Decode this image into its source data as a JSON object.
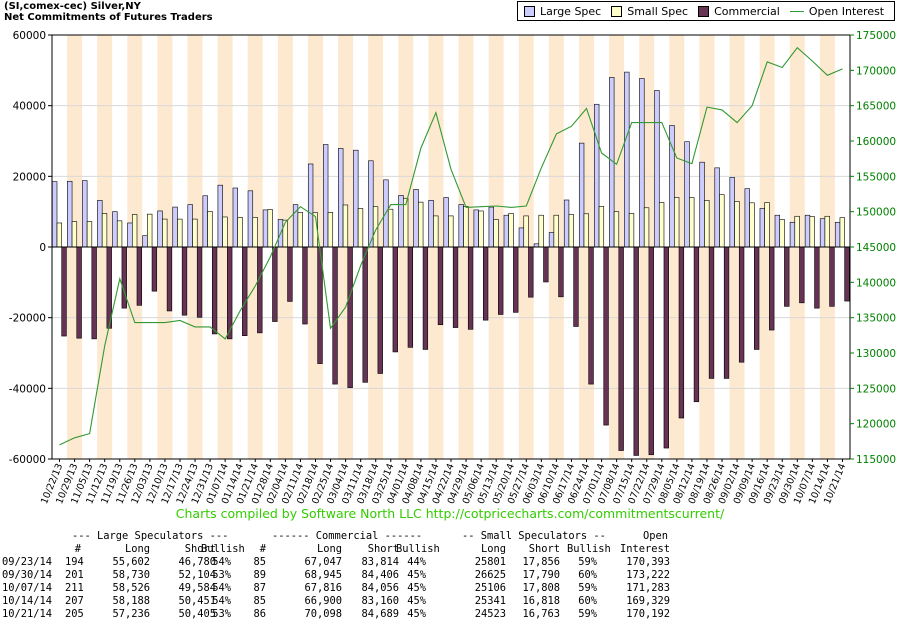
{
  "header": {
    "line1": "(SI,comex-cec) Silver,NY",
    "line2": "Net Commitments of Futures Traders"
  },
  "legend": [
    {
      "label": "Large Spec",
      "color": "#ccccff"
    },
    {
      "label": "Small Spec",
      "color": "#ffffcc"
    },
    {
      "label": "Commercial",
      "color": "#663355"
    },
    {
      "label": "Open Interest",
      "color": "#339933"
    }
  ],
  "credit": "Charts compiled by Software North LLC  http://cotpricecharts.com/commitmentscurrent/",
  "colors": {
    "large_spec": "#ccccff",
    "small_spec": "#ffffcc",
    "commercial": "#663355",
    "open_interest": "#339933",
    "band_odd": "#fde9d0",
    "band_even": "#ffffff",
    "axis_left": "#000000",
    "axis_right": "#008000",
    "credit": "#33cc00"
  },
  "chart_data": {
    "type": "bar",
    "xlabel": "",
    "ylabel": "",
    "left_axis": {
      "ylim": [
        -60000,
        60000
      ],
      "ticks": [
        "60000",
        "40000",
        "20000",
        "0",
        "-20000",
        "-40000",
        "-60000"
      ]
    },
    "right_axis": {
      "ylim": [
        115000,
        175000
      ],
      "ticks": [
        "175000",
        "170000",
        "165000",
        "160000",
        "155000",
        "150000",
        "145000",
        "140000",
        "135000",
        "130000",
        "125000",
        "120000",
        "115000"
      ]
    },
    "x_tick_labels": [
      "10/22/13",
      "10/29/13",
      "11/05/13",
      "11/12/13",
      "11/19/13",
      "11/26/13",
      "12/03/13",
      "12/10/13",
      "12/17/13",
      "12/24/13",
      "12/31/13",
      "01/07/14",
      "01/14/14",
      "01/21/14",
      "01/28/14",
      "02/04/14",
      "02/11/14",
      "02/18/14",
      "02/25/14",
      "03/04/14",
      "03/11/14",
      "03/18/14",
      "03/25/14",
      "04/01/14",
      "04/08/14",
      "04/15/14",
      "04/22/14",
      "04/29/14",
      "05/06/14",
      "05/13/14",
      "05/20/14",
      "05/27/14",
      "06/03/14",
      "06/10/14",
      "06/17/14",
      "06/24/14",
      "07/01/14",
      "07/08/14",
      "07/15/14",
      "07/22/14",
      "07/29/14",
      "08/05/14",
      "08/12/14",
      "08/19/14",
      "08/26/14",
      "09/02/14",
      "09/09/14",
      "09/16/14",
      "09/23/14",
      "09/30/14",
      "10/07/14",
      "10/14/14",
      "10/21/14"
    ],
    "series": [
      {
        "name": "Large Spec",
        "axis": "left",
        "values": [
          18500,
          18600,
          18800,
          13200,
          10000,
          6800,
          3200,
          10200,
          11300,
          12000,
          14500,
          17500,
          16700,
          15900,
          10500,
          7800,
          12000,
          23500,
          29000,
          27900,
          27400,
          24400,
          19000,
          14600,
          16300,
          13200,
          14000,
          12000,
          10500,
          11300,
          9000,
          5400,
          900,
          4100,
          13300,
          29400,
          40400,
          48000,
          49500,
          47700,
          44300,
          34400,
          29800,
          24000,
          22400,
          19700,
          16500,
          10900,
          9000,
          7000,
          9000,
          8000,
          7000
        ]
      },
      {
        "name": "Small Spec",
        "axis": "left",
        "values": [
          6800,
          7200,
          7200,
          9500,
          7400,
          9200,
          9300,
          7900,
          7900,
          7900,
          10100,
          8500,
          8400,
          8400,
          10600,
          7600,
          9800,
          9700,
          9800,
          11900,
          10900,
          11400,
          10700,
          13800,
          12700,
          8800,
          8800,
          11500,
          10200,
          7800,
          9500,
          8800,
          9000,
          9000,
          9200,
          9400,
          11500,
          10000,
          9500,
          11100,
          12600,
          14000,
          14000,
          13200,
          14800,
          12900,
          12500,
          12600,
          7800,
          8700,
          8600,
          8700,
          8300
        ]
      },
      {
        "name": "Commercial",
        "axis": "left",
        "values": [
          -25200,
          -25800,
          -26000,
          -23000,
          -17300,
          -16500,
          -12500,
          -18100,
          -19300,
          -19900,
          -24600,
          -26000,
          -25100,
          -24300,
          -21100,
          -15400,
          -21800,
          -33000,
          -38800,
          -39800,
          -38300,
          -35800,
          -29700,
          -28400,
          -29000,
          -22000,
          -22800,
          -23300,
          -20700,
          -19100,
          -18500,
          -14200,
          -9900,
          -14100,
          -22500,
          -38800,
          -50400,
          -57600,
          -59000,
          -58800,
          -56900,
          -48400,
          -43800,
          -37200,
          -37200,
          -32600,
          -29000,
          -23500,
          -16800,
          -15800,
          -17300,
          -16800,
          -15300
        ]
      },
      {
        "name": "Open Interest",
        "axis": "right",
        "values": [
          117000,
          118000,
          118600,
          131000,
          140500,
          134300,
          134300,
          134300,
          134600,
          133700,
          133700,
          132000,
          136000,
          139500,
          143600,
          148500,
          150700,
          149300,
          133500,
          136500,
          142400,
          147400,
          151000,
          151000,
          159000,
          164000,
          156000,
          150600,
          150700,
          150800,
          150600,
          150800,
          156200,
          161000,
          162100,
          164600,
          158300,
          156700,
          162600,
          162600,
          162600,
          157600,
          156800,
          164800,
          164400,
          162600,
          165000,
          171200,
          170400,
          173200,
          171300,
          169300,
          170200
        ]
      }
    ]
  },
  "table": {
    "group_headers": [
      "--- Large Speculators ---",
      "------ Commercial ------",
      "-- Small Speculators --",
      "Open"
    ],
    "col_headers": [
      "#",
      "Long",
      "Short",
      "Bullish",
      "#",
      "Long",
      "Short",
      "Bullish",
      "Long",
      "Short",
      "Bullish",
      "Interest"
    ],
    "rows": [
      [
        "09/23/14",
        "194",
        "55,602",
        "46,780",
        "54%",
        "85",
        "67,047",
        "83,814",
        "44%",
        "25801",
        "17,856",
        "59%",
        "170,393"
      ],
      [
        "09/30/14",
        "201",
        "58,730",
        "52,104",
        "53%",
        "89",
        "68,945",
        "84,406",
        "45%",
        "26625",
        "17,790",
        "60%",
        "173,222"
      ],
      [
        "10/07/14",
        "211",
        "58,526",
        "49,584",
        "54%",
        "87",
        "67,816",
        "84,056",
        "45%",
        "25106",
        "17,808",
        "59%",
        "171,283"
      ],
      [
        "10/14/14",
        "207",
        "58,188",
        "50,451",
        "54%",
        "85",
        "66,900",
        "83,160",
        "45%",
        "25341",
        "16,818",
        "60%",
        "169,329"
      ],
      [
        "10/21/14",
        "205",
        "57,236",
        "50,405",
        "53%",
        "86",
        "70,098",
        "84,689",
        "45%",
        "24523",
        "16,763",
        "59%",
        "170,192"
      ]
    ]
  }
}
